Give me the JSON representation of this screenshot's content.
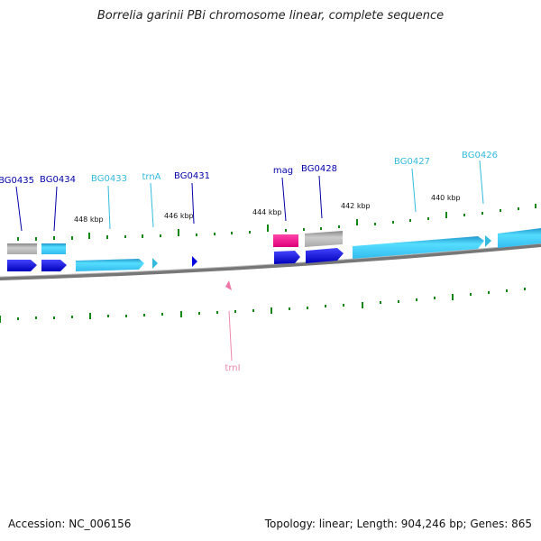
{
  "title": "Borrelia garinii PBi chromosome linear, complete sequence",
  "footer": {
    "accession": "Accession: NC_006156",
    "summary": "Topology: linear; Length: 904,246 bp; Genes: 865"
  },
  "colors": {
    "cds_dark": "#0000dd",
    "cds_light": "#33ccee",
    "rrna_gray": "#aaaaaa",
    "trna_pink": "#ee77aa",
    "magenta": "#ee1188",
    "tick_green": "#118811",
    "backbone": "#777777"
  },
  "gene_labels": [
    {
      "text": "BG0435",
      "color": "#0000aa"
    },
    {
      "text": "BG0434",
      "color": "#0000aa"
    },
    {
      "text": "BG0433",
      "color": "#33bbdd"
    },
    {
      "text": "trnA",
      "color": "#33bbdd"
    },
    {
      "text": "BG0431",
      "color": "#0000aa"
    },
    {
      "text": "mag",
      "color": "#0000aa"
    },
    {
      "text": "BG0428",
      "color": "#0000aa"
    },
    {
      "text": "BG0427",
      "color": "#33bbdd"
    },
    {
      "text": "BG0426",
      "color": "#33bbdd"
    },
    {
      "text": "trnI",
      "color": "#ee88aa"
    }
  ],
  "kbp_labels": [
    "448 kbp",
    "446 kbp",
    "444 kbp",
    "442 kbp",
    "440 kbp"
  ]
}
